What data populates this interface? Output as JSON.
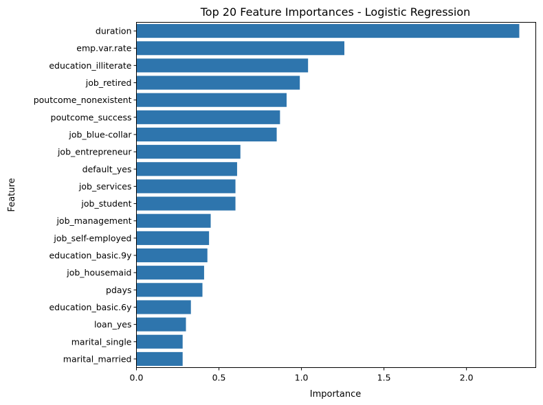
{
  "chart_data": {
    "type": "bar",
    "orientation": "horizontal",
    "title": "Top 20 Feature Importances - Logistic Regression",
    "xlabel": "Importance",
    "ylabel": "Feature",
    "xlim": [
      0,
      2.42
    ],
    "xticks": [
      "0.0",
      "0.5",
      "1.0",
      "1.5",
      "2.0"
    ],
    "xtick_values": [
      0,
      0.5,
      1.0,
      1.5,
      2.0
    ],
    "grid": false,
    "bar_color": "#2e75ad",
    "categories": [
      "duration",
      "emp.var.rate",
      "education_illiterate",
      "job_retired",
      "poutcome_nonexistent",
      "poutcome_success",
      "job_blue-collar",
      "job_entrepreneur",
      "default_yes",
      "job_services",
      "job_student",
      "job_management",
      "job_self-employed",
      "education_basic.9y",
      "job_housemaid",
      "pdays",
      "education_basic.6y",
      "loan_yes",
      "marital_single",
      "marital_married"
    ],
    "values": [
      2.32,
      1.26,
      1.04,
      0.99,
      0.91,
      0.87,
      0.85,
      0.63,
      0.61,
      0.6,
      0.6,
      0.45,
      0.44,
      0.43,
      0.41,
      0.4,
      0.33,
      0.3,
      0.28,
      0.28
    ]
  }
}
